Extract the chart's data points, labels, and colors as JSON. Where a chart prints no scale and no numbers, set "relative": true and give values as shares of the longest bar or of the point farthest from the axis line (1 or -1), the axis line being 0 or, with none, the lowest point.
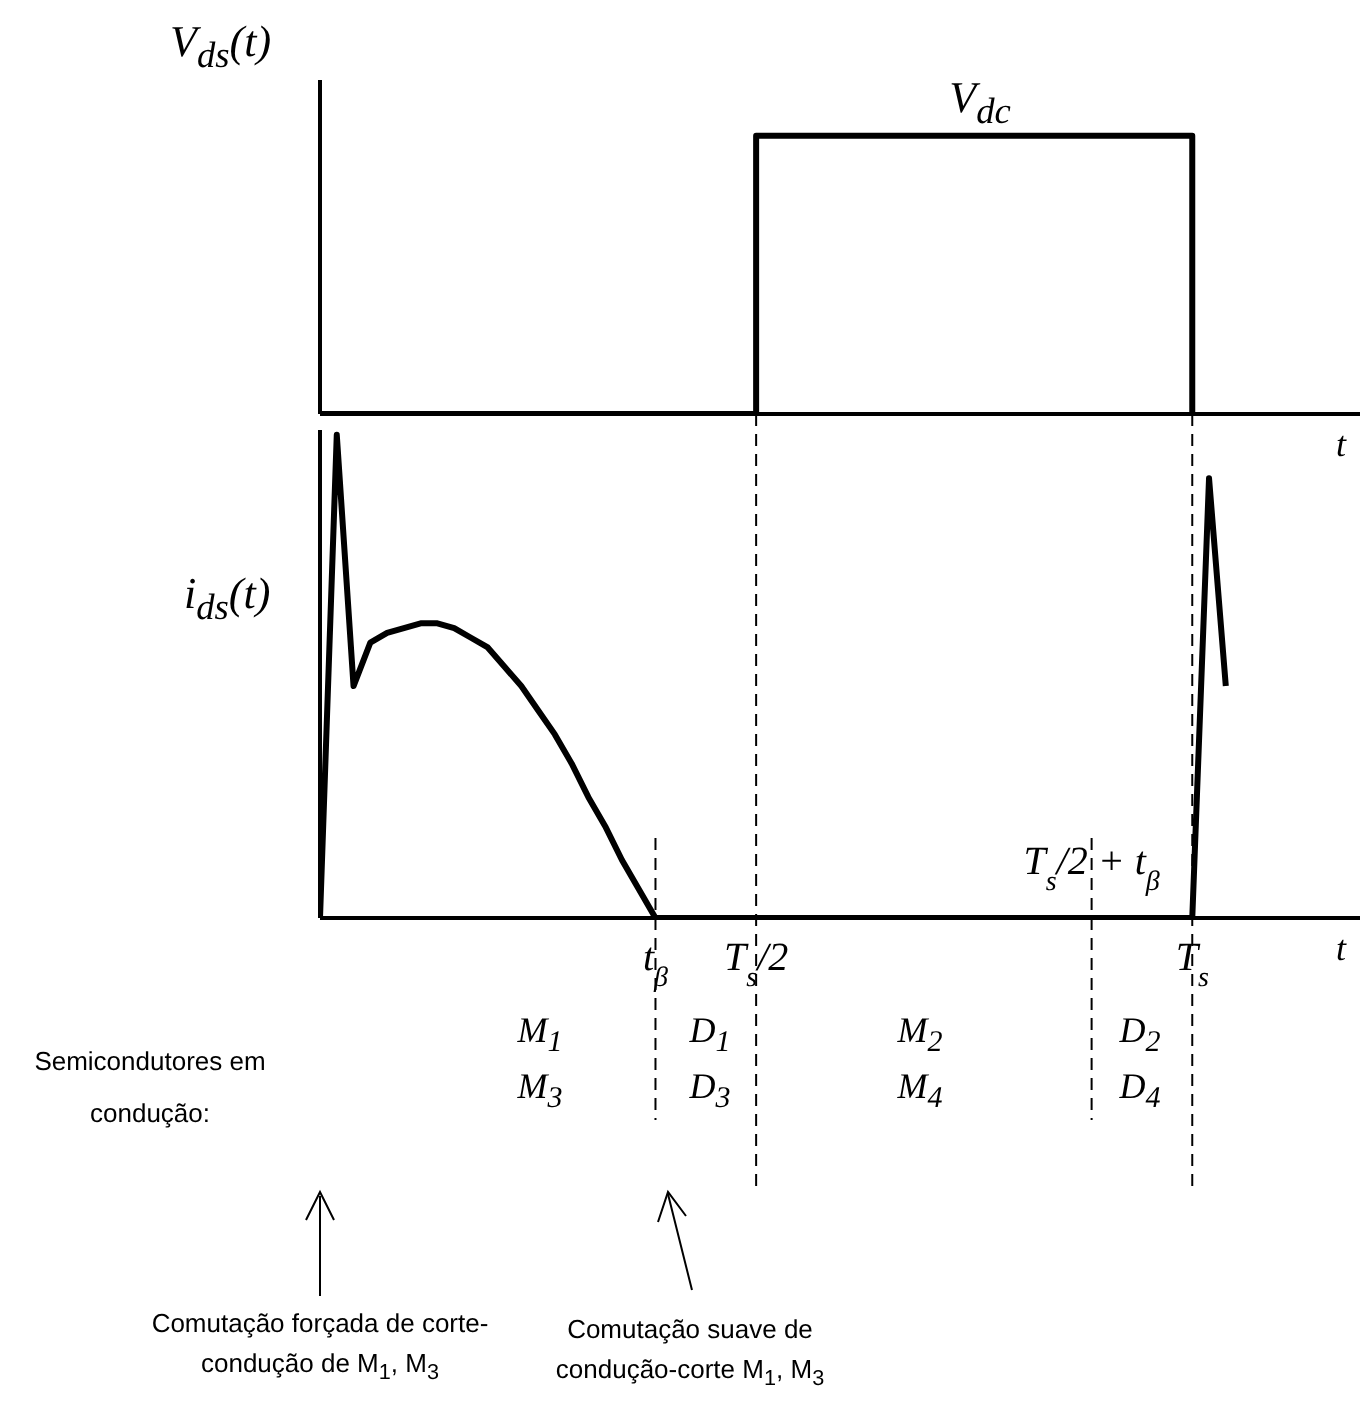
{
  "chart_data": [
    {
      "type": "step",
      "ylabel": "V$_{ds}$(t)",
      "xlabel": "t",
      "relative": true,
      "tick_labels": false,
      "marker": "none",
      "line_style": "solid",
      "color": "#000000",
      "categories": [
        null,
        null,
        null,
        null,
        null,
        null,
        null,
        null,
        null,
        null,
        null,
        null,
        null,
        null,
        null,
        null,
        null,
        null,
        null,
        null,
        null,
        null,
        null,
        null,
        null,
        null,
        null,
        null,
        null,
        null,
        null,
        null,
        null,
        null,
        null,
        null,
        null,
        null,
        null,
        null,
        null,
        null,
        null,
        null,
        null,
        null,
        null,
        null,
        null,
        null,
        null,
        null,
        null
      ],
      "values": [
        0,
        0,
        0,
        0,
        0,
        0,
        0,
        0,
        0,
        0,
        0,
        0,
        0,
        0,
        0,
        0,
        0,
        0,
        0,
        0,
        0,
        0,
        0,
        0,
        0,
        0,
        1,
        1,
        1,
        1,
        1,
        1,
        1,
        1,
        1,
        1,
        1,
        1,
        1,
        1,
        1,
        1,
        1,
        1,
        1,
        1,
        1,
        1,
        1,
        1,
        1,
        1,
        0
      ],
      "annotations": [
        "V$_{dc}$"
      ]
    },
    {
      "type": "line",
      "ylabel": "i$_{ds}$(t)",
      "xlabel": "t",
      "relative": true,
      "tick_labels": "x",
      "marker": "none",
      "line_style": "solid",
      "color": "#000000",
      "categories": [
        null,
        null,
        null,
        null,
        null,
        null,
        null,
        null,
        null,
        null,
        null,
        null,
        null,
        null,
        null,
        null,
        null,
        null,
        null,
        null,
        "t$_{β}$",
        null,
        null,
        null,
        null,
        null,
        "T$_{s}$/2",
        null,
        null,
        null,
        null,
        null,
        null,
        null,
        null,
        null,
        null,
        null,
        null,
        null,
        null,
        null,
        null,
        null,
        null,
        null,
        "T$_{s}$/2 + t$_{β}$",
        null,
        null,
        null,
        null,
        null,
        "T$_{s}$",
        null,
        null
      ],
      "values": [
        0,
        1,
        0.48,
        0.57,
        0.59,
        0.6,
        0.61,
        0.61,
        0.6,
        0.58,
        0.56,
        0.52,
        0.48,
        0.43,
        0.38,
        0.32,
        0.25,
        0.19,
        0.12,
        0.06,
        0,
        0,
        0,
        0,
        0,
        0,
        0,
        0,
        0,
        0,
        0,
        0,
        0,
        0,
        0,
        0,
        0,
        0,
        0,
        0,
        0,
        0,
        0,
        0,
        0,
        0,
        0,
        0,
        0,
        0,
        0,
        0,
        0,
        0.91,
        0.48
      ],
      "ref_lines": [
        {
          "axis": "x",
          "value": "t$_{β}$",
          "line_style": "dashed"
        },
        {
          "axis": "x",
          "value": "T$_{s}$/2",
          "line_style": "dashed"
        },
        {
          "axis": "x",
          "value": "T$_{s}$/2 + t$_{β}$",
          "line_style": "dashed"
        },
        {
          "axis": "x",
          "value": "T$_{s}$",
          "line_style": "dashed"
        }
      ],
      "annotations": [
        "Semicondutores em condução:",
        "M$_{1}$",
        "M$_{3}$",
        "D$_{1}$",
        "D$_{3}$",
        "M$_{2}$",
        "M$_{4}$",
        "D$_{2}$",
        "D$_{4}$",
        "Comutação forçada de corte-condução de M$_{1}$, M$_{3}$",
        "Comutação suave de condução-corte M$_{1}$, M$_{3}$"
      ]
    }
  ]
}
